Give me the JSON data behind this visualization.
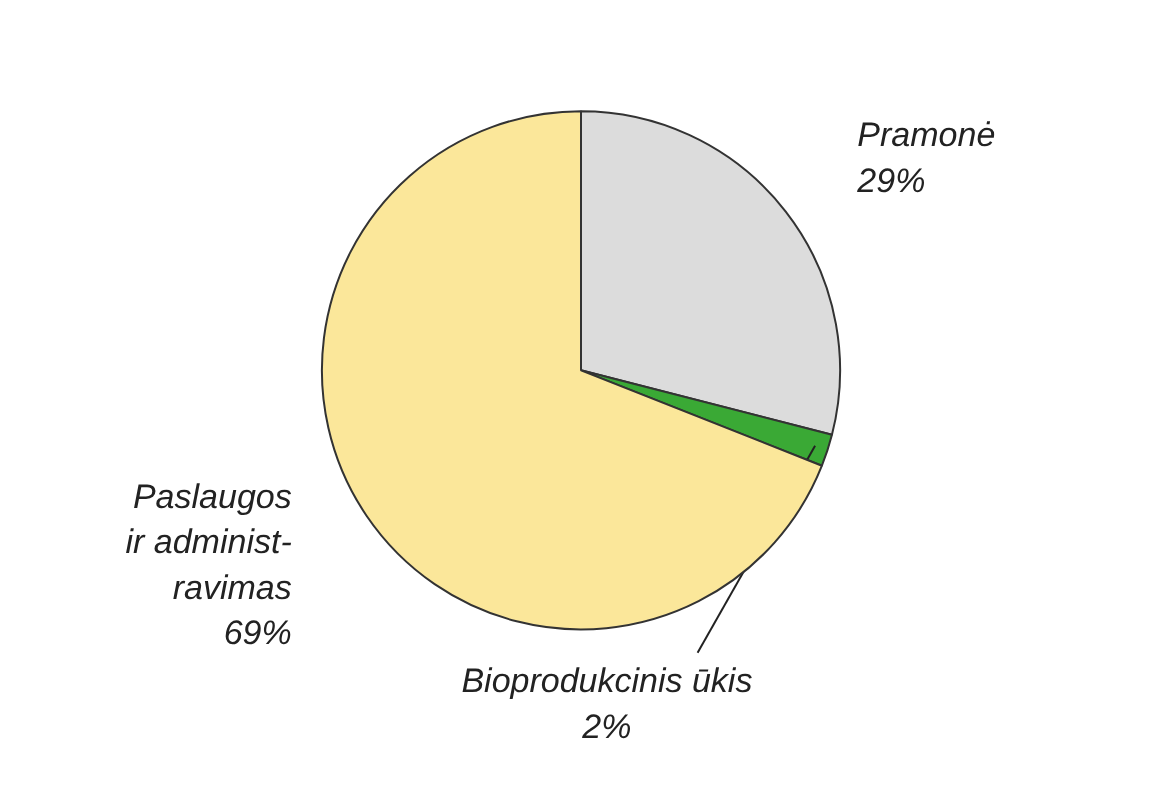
{
  "chart_data": {
    "type": "pie",
    "categories": [
      "Pramonė",
      "Bioprodukcinis ūkis",
      "Paslaugos\nir administ-\nravimas"
    ],
    "values": [
      29,
      2,
      69
    ],
    "colors": [
      "#dcdcdc",
      "#3aa935",
      "#fbe79a"
    ],
    "value_labels": [
      "29%",
      "2%",
      "69%"
    ]
  }
}
